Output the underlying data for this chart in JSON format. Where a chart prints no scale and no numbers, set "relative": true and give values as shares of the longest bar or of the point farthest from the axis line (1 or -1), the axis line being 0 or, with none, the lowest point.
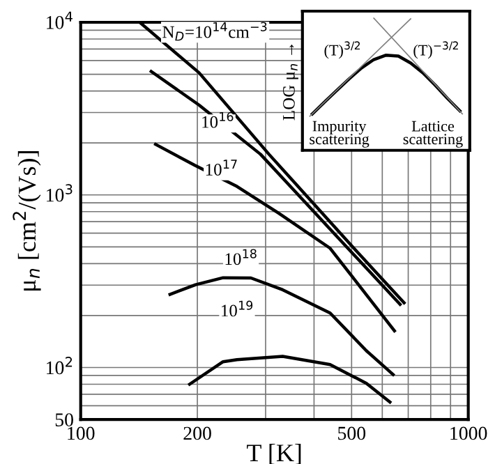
{
  "chart_data": [
    {
      "type": "line",
      "xlabel": "T [K]",
      "ylabel": "μ$_{n}$ [cm$^{2}$/(Vs)]",
      "log": "xy",
      "grid": true,
      "marker": "none",
      "line_style": "solid",
      "xlim": [
        100,
        1000
      ],
      "xticks": [
        100,
        200,
        500,
        1000
      ],
      "ylim": [
        50,
        10000
      ],
      "yticks": [
        50,
        {
          "value": 100,
          "label": "10$^{2}$"
        },
        {
          "value": 1000,
          "label": "10$^{3}$"
        },
        {
          "value": 10000,
          "label": "10$^{4}$"
        }
      ],
      "series": [
        {
          "color": "#000000",
          "x": [
            142,
            202,
            306,
            503,
            683
          ],
          "values": [
            10000,
            5100,
            1720,
            500,
            237
          ]
        },
        {
          "color": "#000000",
          "x": [
            152,
            202,
            291,
            667
          ],
          "values": [
            5190,
            3315,
            1720,
            232
          ]
        },
        {
          "color": "#000000",
          "x": [
            156,
            197,
            253,
            324,
            440,
            645
          ],
          "values": [
            1963,
            1483,
            1120,
            784,
            491,
            163
          ]
        },
        {
          "color": "#000000",
          "x": [
            170,
            198,
            233,
            275,
            332,
            440,
            546,
            640
          ],
          "values": [
            265,
            302,
            331,
            330,
            282,
            207,
            125,
            91
          ]
        },
        {
          "color": "#000000",
          "x": [
            191,
            233,
            253,
            332,
            440,
            546,
            628
          ],
          "values": [
            80,
            108,
            111,
            116,
            104,
            81,
            63
          ]
        }
      ],
      "annotations": [
        "N$_{D}$=10$^{14}$cm$^{−3}$",
        "10$^{16}$",
        "10$^{17}$",
        "10$^{18}$",
        "10$^{19}$"
      ]
    },
    {
      "type": "line",
      "relative": true,
      "ylabel": "LOG μ$_{n}$ →",
      "marker": "none",
      "line_style": "solid",
      "categories": [
        null,
        null,
        null,
        null,
        null,
        null,
        null,
        null,
        null,
        null,
        null,
        null,
        null
      ],
      "series": [
        {
          "color": "#000000",
          "values": [
            0,
            0.203,
            0.403,
            0.597,
            0.781,
            0.925,
            1.0,
            0.984,
            0.866,
            0.698,
            0.488,
            0.261,
            0.051
          ]
        }
      ],
      "annotations": [
        "(T)$^{3/2}$",
        "(T)$^{−3/2}$",
        "Impurity\nscattering",
        "Lattice\nscattering"
      ]
    }
  ]
}
